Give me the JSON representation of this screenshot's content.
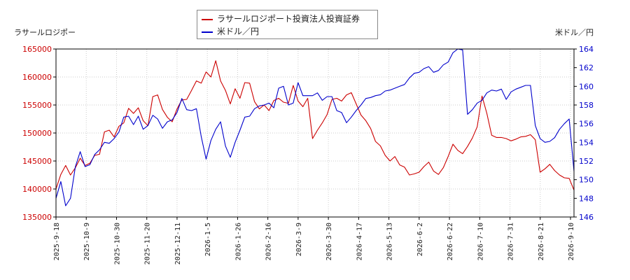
{
  "chart_data": {
    "type": "line",
    "left_axis_title": "ラサールロジポー",
    "right_axis_title": "米ドル／円",
    "x_tick_labels": [
      "2025-9-18",
      "2025-10-9",
      "2025-10-30",
      "2025-11-20",
      "2025-12-11",
      "2026-1-5",
      "2026-1-26",
      "2026-2-16",
      "2026-3-9",
      "2026-3-30",
      "2026-4-17",
      "2026-5-13",
      "2026-6-2",
      "2026-6-22",
      "2026-7-10",
      "2026-7-31",
      "2026-8-21",
      "2026-9-10"
    ],
    "left_axis": {
      "min": 135000,
      "max": 165000,
      "ticks": [
        135000,
        140000,
        145000,
        150000,
        155000,
        160000,
        165000
      ],
      "color": "#cc0000"
    },
    "right_axis": {
      "min": 146,
      "max": 164,
      "ticks": [
        146,
        148,
        150,
        152,
        154,
        156,
        158,
        160,
        162,
        164
      ],
      "color": "#0000cc"
    },
    "grid": true,
    "legend_position": "top-center",
    "series": [
      {
        "name": "ラサールロジポート投資法人投資証券",
        "axis": "left",
        "color": "#cc0000",
        "values": [
          140000,
          142600,
          144200,
          142500,
          143800,
          145500,
          144200,
          144600,
          146000,
          146200,
          150200,
          150500,
          149300,
          151200,
          151800,
          154400,
          153500,
          154500,
          152200,
          151300,
          156500,
          156800,
          154200,
          152800,
          152000,
          154300,
          155900,
          156000,
          157600,
          159300,
          158900,
          160900,
          160000,
          162900,
          159300,
          157600,
          155200,
          157900,
          156200,
          159000,
          158900,
          155600,
          154300,
          155000,
          154000,
          155800,
          156200,
          155500,
          155300,
          158500,
          155700,
          154700,
          156200,
          149000,
          150500,
          151800,
          153300,
          156000,
          156200,
          155700,
          156800,
          157200,
          155200,
          153200,
          152200,
          150800,
          148500,
          147700,
          146000,
          145000,
          145800,
          144300,
          143900,
          142500,
          142700,
          143000,
          144000,
          144800,
          143200,
          142600,
          143800,
          145800,
          148000,
          146900,
          146300,
          147600,
          149100,
          151100,
          156600,
          153500,
          149600,
          149200,
          149200,
          149000,
          148600,
          148900,
          149300,
          149400,
          149700,
          148800,
          143000,
          143600,
          144400,
          143300,
          142500,
          142000,
          141900,
          139800
        ]
      },
      {
        "name": "米ドル／円",
        "axis": "right",
        "color": "#0000cc",
        "values": [
          148.0,
          149.8,
          147.2,
          148.0,
          151.4,
          153.0,
          151.4,
          151.6,
          152.7,
          153.2,
          154.0,
          153.9,
          154.4,
          155.1,
          156.7,
          156.8,
          155.9,
          156.8,
          155.4,
          155.8,
          156.9,
          156.5,
          155.5,
          156.2,
          156.4,
          157.2,
          158.7,
          157.5,
          157.4,
          157.6,
          154.6,
          152.2,
          154.2,
          155.4,
          156.2,
          153.6,
          152.4,
          154.0,
          155.3,
          156.7,
          156.8,
          157.6,
          157.9,
          158.0,
          158.2,
          157.7,
          159.8,
          160.0,
          158.0,
          158.2,
          160.4,
          159.0,
          159.0,
          159.0,
          159.3,
          158.5,
          158.9,
          158.9,
          157.4,
          157.2,
          156.1,
          156.7,
          157.4,
          158.0,
          158.7,
          158.8,
          159.0,
          159.1,
          159.5,
          159.6,
          159.8,
          160.0,
          160.2,
          160.9,
          161.4,
          161.5,
          161.9,
          162.1,
          161.5,
          161.7,
          162.3,
          162.6,
          163.6,
          164.0,
          163.9,
          157.0,
          157.5,
          158.2,
          158.5,
          159.3,
          159.6,
          159.5,
          159.7,
          158.6,
          159.4,
          159.7,
          159.9,
          160.1,
          160.1,
          155.8,
          154.4,
          154.0,
          154.1,
          154.5,
          155.4,
          156.0,
          156.5,
          150.9
        ]
      }
    ]
  }
}
